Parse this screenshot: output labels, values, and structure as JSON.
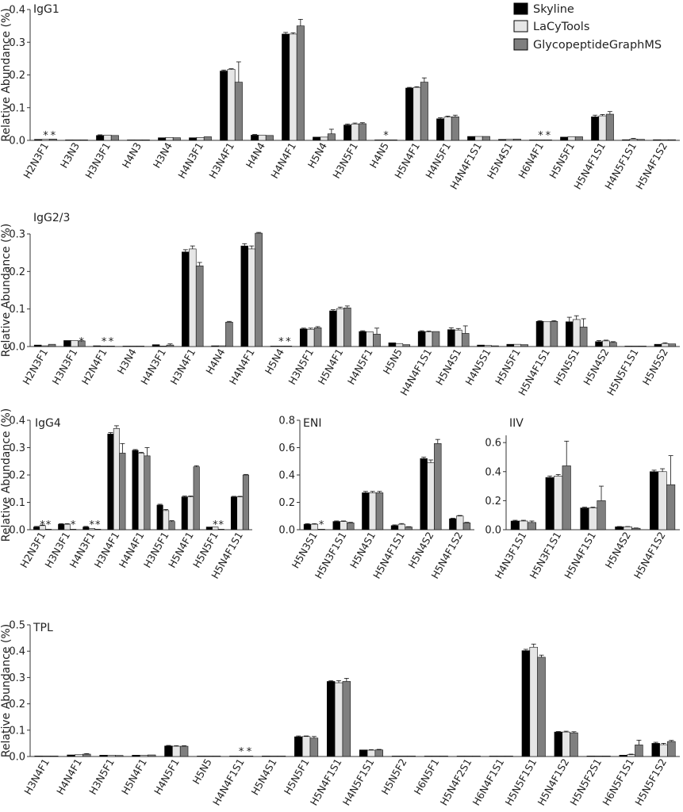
{
  "figure": {
    "ylabel": "Relative Abundance (%)",
    "legend": [
      "Skyline",
      "LaCyTools",
      "GlycopeptideGraphMS"
    ],
    "colors": [
      "#000000",
      "#e6e6e6",
      "#7f7f7f"
    ]
  },
  "chart_data": [
    {
      "type": "bar",
      "title": "IgG1",
      "ylabel": "Relative Abundance (%)",
      "ylim": [
        0,
        0.4
      ],
      "yticks": [
        "0.0",
        "0.1",
        "0.2",
        "0.3",
        "0.4"
      ],
      "legend_position": "top-right",
      "categories": [
        "H2N3F1",
        "H3N3",
        "H3N3F1",
        "H4N3",
        "H3N4",
        "H4N3F1",
        "H3N4F1",
        "H4N4",
        "H4N4F1",
        "H5N4",
        "H3N5F1",
        "H4N5",
        "H5N4F1",
        "H4N5F1",
        "H4N4F1S1",
        "H5N4S1",
        "H6N4F1",
        "H5N5F1",
        "H5N4F1S1",
        "H4N5F1S1",
        "H5N4F1S2"
      ],
      "series": [
        {
          "name": "Skyline",
          "values": [
            0.003,
            0.001,
            0.015,
            0.001,
            0.008,
            0.008,
            0.212,
            0.016,
            0.325,
            0.01,
            0.047,
            0.001,
            0.16,
            0.066,
            0.012,
            0.003,
            0.001,
            0.01,
            0.072,
            0.002,
            0.002
          ],
          "errors": [
            0.001,
            0.0005,
            0.002,
            0.0005,
            0.001,
            0.001,
            0.003,
            0.002,
            0.005,
            0.001,
            0.003,
            0.0005,
            0.002,
            0.003,
            0.001,
            0.0005,
            0.0005,
            0.001,
            0.005,
            0.0005,
            0.0005
          ]
        },
        {
          "name": "LaCyTools",
          "values": [
            0.003,
            0.001,
            0.016,
            0.001,
            0.009,
            0.009,
            0.217,
            0.016,
            0.325,
            0.01,
            0.05,
            0.001,
            0.162,
            0.071,
            0.012,
            0.003,
            0.001,
            0.011,
            0.075,
            0.004,
            0.002
          ],
          "errors": [
            0.001,
            0.0005,
            0.001,
            0.0005,
            0.001,
            0.001,
            0.002,
            0.001,
            0.004,
            0.001,
            0.003,
            0.0005,
            0.002,
            0.003,
            0.001,
            0.0005,
            0.0005,
            0.001,
            0.004,
            0.002,
            0.0005
          ]
        },
        {
          "name": "GlycopeptideGraphMS",
          "values": [
            0.004,
            0.001,
            0.015,
            0.001,
            0.008,
            0.011,
            0.178,
            0.015,
            0.35,
            0.02,
            0.051,
            0.001,
            0.178,
            0.072,
            0.012,
            0.004,
            0.001,
            0.011,
            0.08,
            0.003,
            0.002
          ],
          "errors": [
            0.001,
            0.0005,
            0.001,
            0.0005,
            0.001,
            0.001,
            0.062,
            0.001,
            0.02,
            0.014,
            0.003,
            0.0005,
            0.013,
            0.005,
            0.001,
            0.0005,
            0.0005,
            0.001,
            0.008,
            0.001,
            0.0005
          ]
        }
      ],
      "annotations": [
        {
          "category": "H2N3F1",
          "series": [
            1,
            2
          ],
          "text": "*"
        },
        {
          "category": "H4N5",
          "series": [
            1
          ],
          "text": "*"
        },
        {
          "category": "H6N4F1",
          "series": [
            1,
            2
          ],
          "text": "*"
        }
      ]
    },
    {
      "type": "bar",
      "title": "IgG2/3",
      "ylabel": "Relative Abundance (%)",
      "ylim": [
        0,
        0.3
      ],
      "yticks": [
        "0.0",
        "0.1",
        "0.2",
        "0.3"
      ],
      "categories": [
        "H2N3F1",
        "H3N3F1",
        "H2N4F1",
        "H3N4",
        "H4N3F1",
        "H3N4F1",
        "H4N4",
        "H4N4F1",
        "H5N4",
        "H3N5F1",
        "H5N4F1",
        "H4N5F1",
        "H5N5",
        "H4N4F1S1",
        "H5N4S1",
        "H4N5S1",
        "H5N5F1",
        "H5N4F1S1",
        "H5N5S1",
        "H5N4S2",
        "H5N5F1S1",
        "H5N5S2"
      ],
      "series": [
        {
          "name": "Skyline",
          "values": [
            0.004,
            0.016,
            0.002,
            0.001,
            0.005,
            0.252,
            0.002,
            0.268,
            0.001,
            0.047,
            0.095,
            0.04,
            0.01,
            0.04,
            0.045,
            0.004,
            0.006,
            0.067,
            0.066,
            0.013,
            0.001,
            0.006
          ],
          "errors": [
            0.0005,
            0.001,
            0.0005,
            0.0005,
            0.001,
            0.006,
            0.0005,
            0.006,
            0.0005,
            0.002,
            0.003,
            0.002,
            0.001,
            0.002,
            0.005,
            0.0005,
            0.001,
            0.002,
            0.012,
            0.003,
            0.0005,
            0.001
          ]
        },
        {
          "name": "LaCyTools",
          "values": [
            0.002,
            0.016,
            0.001,
            0.001,
            0.001,
            0.26,
            0.002,
            0.26,
            0.001,
            0.046,
            0.101,
            0.039,
            0.008,
            0.039,
            0.044,
            0.003,
            0.006,
            0.066,
            0.072,
            0.015,
            0.001,
            0.008
          ],
          "errors": [
            0.0005,
            0.001,
            0.0005,
            0.0005,
            0.0005,
            0.008,
            0.0005,
            0.008,
            0.0005,
            0.003,
            0.004,
            0.001,
            0.001,
            0.002,
            0.004,
            0.0005,
            0.001,
            0.001,
            0.01,
            0.002,
            0.0005,
            0.002
          ]
        },
        {
          "name": "GlycopeptideGraphMS",
          "values": [
            0.006,
            0.015,
            0.001,
            0.001,
            0.004,
            0.215,
            0.065,
            0.302,
            0.001,
            0.05,
            0.103,
            0.033,
            0.005,
            0.04,
            0.035,
            0.002,
            0.005,
            0.067,
            0.052,
            0.011,
            0.001,
            0.007
          ],
          "errors": [
            0.001,
            0.001,
            0.0005,
            0.0005,
            0.003,
            0.009,
            0.002,
            0.002,
            0.0005,
            0.003,
            0.005,
            0.016,
            0.001,
            0.001,
            0.02,
            0.0005,
            0.001,
            0.002,
            0.022,
            0.002,
            0.0005,
            0.001
          ]
        }
      ],
      "annotations": [
        {
          "category": "H3N3F1",
          "series": [
            2
          ],
          "text": "*"
        },
        {
          "category": "H2N4F1",
          "series": [
            1,
            2
          ],
          "text": "*"
        },
        {
          "category": "H5N4",
          "series": [
            1,
            2
          ],
          "text": "*"
        }
      ]
    },
    {
      "type": "bar",
      "title": "IgG4",
      "ylabel": "Relative Abundance (%)",
      "ylim": [
        0,
        0.4
      ],
      "yticks": [
        "0.0",
        "0.1",
        "0.2",
        "0.3",
        "0.4"
      ],
      "categories": [
        "H2N3F1",
        "H3N3F1",
        "H4N3F1",
        "H3N4F1",
        "H4N4F1",
        "H3N5F1",
        "H5N4F1",
        "H5N5F1",
        "H5N4F1S1"
      ],
      "series": [
        {
          "name": "Skyline",
          "values": [
            0.01,
            0.02,
            0.01,
            0.35,
            0.29,
            0.09,
            0.12,
            0.01,
            0.12
          ],
          "errors": [
            0.002,
            0.002,
            0.002,
            0.005,
            0.003,
            0.003,
            0.003,
            0.001,
            0.002
          ]
        },
        {
          "name": "LaCyTools",
          "values": [
            0.015,
            0.02,
            0.005,
            0.37,
            0.28,
            0.07,
            0.12,
            0.01,
            0.12
          ],
          "errors": [
            0.002,
            0.002,
            0.001,
            0.01,
            0.003,
            0.004,
            0.003,
            0.001,
            0.002
          ]
        },
        {
          "name": "GlycopeptideGraphMS",
          "values": [
            0.001,
            0.001,
            0.001,
            0.28,
            0.27,
            0.03,
            0.23,
            0.001,
            0.2
          ],
          "errors": [
            0.0005,
            0.0005,
            0.0005,
            0.035,
            0.03,
            0.003,
            0.004,
            0.0005,
            0.002
          ]
        }
      ],
      "annotations": [
        {
          "category": "H2N3F1",
          "series": [
            1,
            2
          ],
          "text": "*"
        },
        {
          "category": "H3N3F1",
          "series": [
            2
          ],
          "text": "*"
        },
        {
          "category": "H4N3F1",
          "series": [
            1,
            2
          ],
          "text": "*"
        },
        {
          "category": "H5N5F1",
          "series": [
            1,
            2
          ],
          "text": "*"
        }
      ]
    },
    {
      "type": "bar",
      "title": "ENI",
      "ylim": [
        0,
        0.8
      ],
      "yticks": [
        "0.0",
        "0.2",
        "0.4",
        "0.6",
        "0.8"
      ],
      "categories": [
        "H5N3S1",
        "H5N3F1S1",
        "H5N4S1",
        "H5N4F1S1",
        "H5N4S2",
        "H5N4F1S2"
      ],
      "series": [
        {
          "name": "Skyline",
          "values": [
            0.04,
            0.06,
            0.27,
            0.03,
            0.52,
            0.08
          ],
          "errors": [
            0.004,
            0.004,
            0.01,
            0.005,
            0.01,
            0.004
          ]
        },
        {
          "name": "LaCyTools",
          "values": [
            0.04,
            0.06,
            0.27,
            0.04,
            0.49,
            0.1
          ],
          "errors": [
            0.004,
            0.004,
            0.01,
            0.005,
            0.02,
            0.004
          ]
        },
        {
          "name": "GlycopeptideGraphMS",
          "values": [
            0.001,
            0.05,
            0.27,
            0.02,
            0.63,
            0.05
          ],
          "errors": [
            0.0005,
            0.004,
            0.01,
            0.002,
            0.03,
            0.004
          ]
        }
      ],
      "annotations": [
        {
          "category": "H5N3S1",
          "series": [
            2
          ],
          "text": "*"
        }
      ]
    },
    {
      "type": "bar",
      "title": "IIV",
      "ylim": [
        0,
        0.65
      ],
      "yticks": [
        "0.0",
        "0.2",
        "0.4",
        "0.6"
      ],
      "categories": [
        "H4N3F1S1",
        "H5N3F1S1",
        "H5N4F1S1",
        "H5N4S2",
        "H5N4F1S2"
      ],
      "series": [
        {
          "name": "Skyline",
          "values": [
            0.06,
            0.36,
            0.15,
            0.02,
            0.4
          ],
          "errors": [
            0.005,
            0.01,
            0.005,
            0.002,
            0.01
          ]
        },
        {
          "name": "LaCyTools",
          "values": [
            0.06,
            0.37,
            0.15,
            0.02,
            0.4
          ],
          "errors": [
            0.005,
            0.01,
            0.005,
            0.002,
            0.02
          ]
        },
        {
          "name": "GlycopeptideGraphMS",
          "values": [
            0.05,
            0.44,
            0.2,
            0.01,
            0.31
          ],
          "errors": [
            0.01,
            0.17,
            0.1,
            0.002,
            0.2
          ]
        }
      ],
      "annotations": []
    },
    {
      "type": "bar",
      "title": "TPL",
      "ylabel": "Relative Abundance (%)",
      "ylim": [
        0,
        0.5
      ],
      "yticks": [
        "0.0",
        "0.1",
        "0.2",
        "0.3",
        "0.4",
        "0.5"
      ],
      "categories": [
        "H3N4F1",
        "H4N4F1",
        "H3N5F1",
        "H5N4F1",
        "H4N5F1",
        "H5N5",
        "H4N4F1S1",
        "H5N4S1",
        "H5N5F1",
        "H5N4F1S1",
        "H4N5F1S1",
        "H5N5F2",
        "H6N5F1",
        "H5N4F2S1",
        "H6N4F1S1",
        "H5N5F1S1",
        "H5N4F1S2",
        "H5N5F2S1",
        "H6N5F1S1",
        "H5N5F1S2"
      ],
      "series": [
        {
          "name": "Skyline",
          "values": [
            0.002,
            0.006,
            0.005,
            0.005,
            0.04,
            0.001,
            0.001,
            0.002,
            0.075,
            0.285,
            0.025,
            0.001,
            0.001,
            0.001,
            0.001,
            0.402,
            0.093,
            0.002,
            0.005,
            0.05
          ],
          "errors": [
            0.0005,
            0.001,
            0.001,
            0.001,
            0.002,
            0.0005,
            0.0005,
            0.0005,
            0.003,
            0.003,
            0.001,
            0.0005,
            0.0005,
            0.0005,
            0.0005,
            0.005,
            0.002,
            0.0005,
            0.001,
            0.004
          ]
        },
        {
          "name": "LaCyTools",
          "values": [
            0.002,
            0.007,
            0.005,
            0.005,
            0.039,
            0.001,
            0.001,
            0.002,
            0.076,
            0.28,
            0.024,
            0.001,
            0.001,
            0.001,
            0.001,
            0.415,
            0.093,
            0.002,
            0.007,
            0.045
          ],
          "errors": [
            0.0005,
            0.001,
            0.001,
            0.001,
            0.002,
            0.0005,
            0.0005,
            0.0005,
            0.002,
            0.008,
            0.002,
            0.0005,
            0.0005,
            0.0005,
            0.0005,
            0.012,
            0.003,
            0.0005,
            0.002,
            0.005
          ]
        },
        {
          "name": "GlycopeptideGraphMS",
          "values": [
            0.002,
            0.009,
            0.004,
            0.006,
            0.039,
            0.001,
            0.001,
            0.001,
            0.07,
            0.285,
            0.025,
            0.001,
            0.001,
            0.001,
            0.001,
            0.377,
            0.09,
            0.002,
            0.044,
            0.057
          ],
          "errors": [
            0.0005,
            0.002,
            0.001,
            0.001,
            0.002,
            0.0005,
            0.0005,
            0.0005,
            0.006,
            0.012,
            0.002,
            0.0005,
            0.0005,
            0.0005,
            0.0005,
            0.008,
            0.004,
            0.0005,
            0.018,
            0.004
          ]
        }
      ],
      "annotations": [
        {
          "category": "H4N4F1S1",
          "series": [
            1,
            2
          ],
          "text": "*"
        }
      ]
    }
  ]
}
